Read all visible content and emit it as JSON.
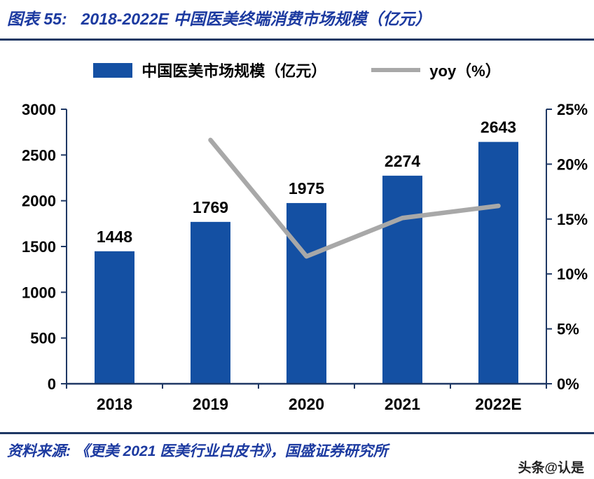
{
  "header": {
    "label": "图表 55:",
    "title": "2018-2022E 中国医美终端消费市场规模（亿元）"
  },
  "colors": {
    "accent_blue": "#1c3aa0",
    "rule_navy": "#1f3864",
    "axis_navy": "#1f3864",
    "bar_blue": "#1450a3",
    "line_gray": "#a8a8a8",
    "text_black": "#000000"
  },
  "chart_data": {
    "type": "bar+line",
    "title": "2018-2022E 中国医美终端消费市场规模（亿元）",
    "categories": [
      "2018",
      "2019",
      "2020",
      "2021",
      "2022E"
    ],
    "bar_series": {
      "name": "中国医美市场规模（亿元）",
      "values": [
        1448,
        1769,
        1975,
        2274,
        2643
      ],
      "color": "#1450a3",
      "axis": "left"
    },
    "line_series": {
      "name": "yoy（%）",
      "values": [
        null,
        22.2,
        11.6,
        15.1,
        16.2
      ],
      "color": "#a8a8a8",
      "axis": "right"
    },
    "left_axis": {
      "min": 0,
      "max": 3000,
      "step": 500,
      "ticks": [
        "0",
        "500",
        "1000",
        "1500",
        "2000",
        "2500",
        "3000"
      ]
    },
    "right_axis": {
      "min": 0,
      "max": 25,
      "step": 5,
      "ticks": [
        "0%",
        "5%",
        "10%",
        "15%",
        "20%",
        "25%"
      ]
    },
    "grid": false,
    "legend_position": "top"
  },
  "footer": {
    "source": "资料来源: 《更美 2021 医美行业白皮书》，国盛证券研究所",
    "watermark": "头条@认是"
  }
}
